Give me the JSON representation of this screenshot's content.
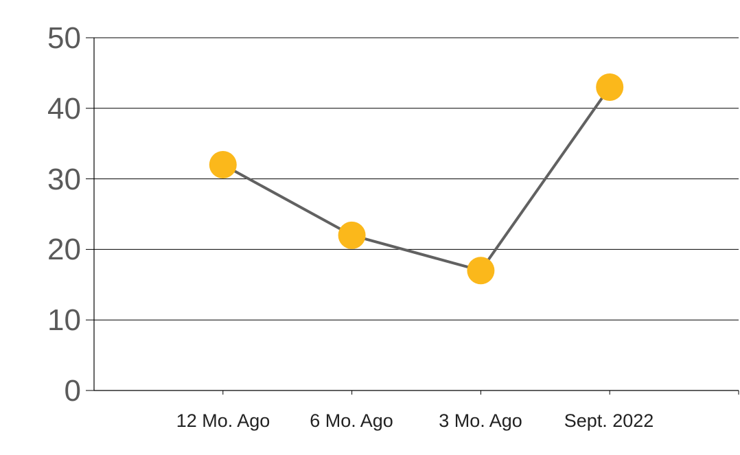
{
  "chart_data": {
    "type": "line",
    "categories": [
      "12 Mo. Ago",
      "6 Mo. Ago",
      "3 Mo. Ago",
      "Sept. 2022"
    ],
    "values": [
      32,
      22,
      17,
      43
    ],
    "yticks": [
      "0",
      "10",
      "20",
      "30",
      "40",
      "50"
    ],
    "ylim": [
      0,
      50
    ],
    "title": "",
    "xlabel": "",
    "ylabel": "",
    "grid": true,
    "legend": "none",
    "colors": {
      "line": "#616161",
      "marker": "#FBB81B",
      "grid": "#000000",
      "tick_text": "#5a5a5a"
    }
  }
}
